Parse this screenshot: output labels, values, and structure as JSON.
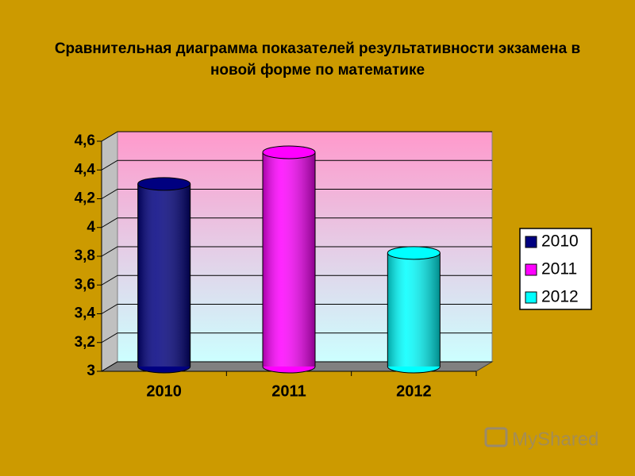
{
  "chart_data": {
    "type": "bar3d",
    "title": "Сравнительная диаграмма показателей результативности экзамена в новой форме по математике",
    "categories": [
      "2010",
      "2011",
      "2012"
    ],
    "values": [
      4.27,
      4.49,
      3.79
    ],
    "colors": [
      "#000080",
      "#ff00ff",
      "#00ffff"
    ],
    "ylim": [
      3,
      4.6
    ],
    "yticks": [
      3,
      {
        "value": 3.2,
        "label": "3,2"
      },
      {
        "value": 3.4,
        "label": "3,4"
      },
      {
        "value": 3.6,
        "label": "3,6"
      },
      {
        "value": 3.8,
        "label": "3,8"
      },
      4,
      {
        "value": 4.2,
        "label": "4,2"
      },
      {
        "value": 4.4,
        "label": "4,4"
      },
      {
        "value": 4.6,
        "label": "4,6"
      }
    ],
    "grid": true,
    "legend": "right"
  },
  "watermark": "MyShared"
}
